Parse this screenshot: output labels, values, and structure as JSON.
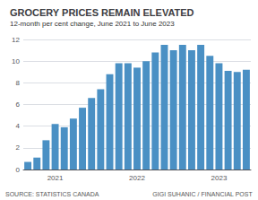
{
  "chart_data": {
    "type": "bar",
    "title": "GROCERY PRICES REMAIN ELEVATED",
    "subtitle": "12-month per cent change, June 2021 to June 2023",
    "annotations": [
      "SOURCE: STATISTICS CANADA",
      "GIGI SUHANIC / FINANCIAL POST"
    ],
    "categories": [
      null,
      null,
      null,
      "2021",
      null,
      null,
      null,
      null,
      null,
      null,
      null,
      null,
      "2022",
      null,
      null,
      null,
      null,
      null,
      null,
      null,
      null,
      "2023",
      null,
      null,
      null
    ],
    "values": [
      0.7,
      1.1,
      2.7,
      4.2,
      3.9,
      4.7,
      5.7,
      6.6,
      7.4,
      8.8,
      9.8,
      9.8,
      9.4,
      10.0,
      10.8,
      11.5,
      11.0,
      11.5,
      11.0,
      11.5,
      10.5,
      9.8,
      9.1,
      9.0,
      9.2
    ],
    "color": "#4a90c4",
    "ylim": [
      0,
      12
    ],
    "yticks": [
      0,
      2,
      4,
      6,
      8,
      10,
      12
    ],
    "grid": true
  }
}
